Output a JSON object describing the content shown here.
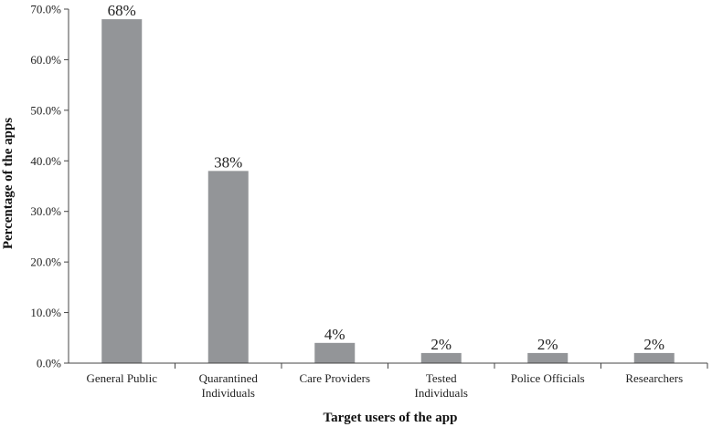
{
  "chart_data": {
    "type": "bar",
    "categories": [
      [
        "General Public"
      ],
      [
        "Quarantined",
        "Individuals"
      ],
      [
        "Care Providers"
      ],
      [
        "Tested",
        "Individuals"
      ],
      [
        "Police Officials"
      ],
      [
        "Researchers"
      ]
    ],
    "values": [
      68,
      38,
      4,
      2,
      2,
      2
    ],
    "data_labels": [
      "68%",
      "38%",
      "4%",
      "2%",
      "2%",
      "2%"
    ],
    "title": "",
    "xlabel": "Target users of the app",
    "ylabel": "Percentage of the apps",
    "ylim": [
      0,
      70
    ],
    "yticks": [
      0,
      10,
      20,
      30,
      40,
      50,
      60,
      70
    ],
    "ytick_labels": [
      "0.0%",
      "10.0%",
      "20.0%",
      "30.0%",
      "40.0%",
      "50.0%",
      "60.0%",
      "70.0%"
    ],
    "grid": false,
    "legend": "none",
    "bar_color": "#939598"
  }
}
